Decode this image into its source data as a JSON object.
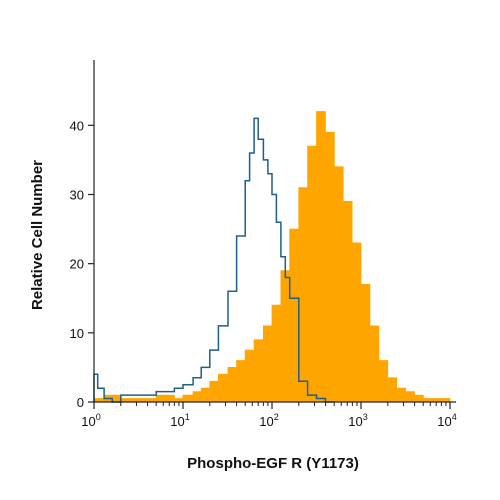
{
  "chart_data": {
    "type": "area",
    "xlabel": "Phospho-EGF R (Y1173)",
    "ylabel": "Relative Cell Number",
    "x_scale": "log",
    "xlim": [
      1,
      10000
    ],
    "ylim": [
      0,
      48
    ],
    "x_ticks": [
      {
        "base": "10",
        "exp": "0",
        "value": 1
      },
      {
        "base": "10",
        "exp": "1",
        "value": 10
      },
      {
        "base": "10",
        "exp": "2",
        "value": 100
      },
      {
        "base": "10",
        "exp": "3",
        "value": 1000
      },
      {
        "base": "10",
        "exp": "4",
        "value": 10000
      }
    ],
    "y_ticks": [
      "0",
      "10",
      "20",
      "30",
      "40"
    ],
    "grid": false,
    "series": [
      {
        "style": "filled",
        "color": "#FFA500",
        "x": [
          1,
          1.3,
          2,
          3,
          5,
          8,
          10,
          13,
          16,
          20,
          25,
          32,
          40,
          50,
          63,
          80,
          100,
          126,
          158,
          200,
          251,
          316,
          398,
          501,
          631,
          794,
          1000,
          1259,
          1585,
          1995,
          2512,
          3162,
          3981,
          5012,
          6310,
          7943,
          10000
        ],
        "y": [
          0.5,
          1,
          0.5,
          0.5,
          1,
          0.5,
          1,
          1.5,
          2,
          3,
          4,
          5,
          6,
          7.5,
          9,
          11,
          14,
          19,
          25,
          31,
          37,
          42,
          39,
          34,
          29,
          23,
          17,
          11,
          6,
          3.5,
          2,
          1.5,
          1,
          0.5,
          0.5,
          0.5,
          0.5
        ]
      },
      {
        "style": "outline",
        "color": "#1F5F8B",
        "x": [
          1,
          1.1,
          1.3,
          1.6,
          2,
          3,
          5,
          8,
          10,
          13,
          16,
          20,
          25,
          32,
          40,
          50,
          56,
          63,
          70,
          80,
          90,
          100,
          112,
          126,
          141,
          158,
          200,
          251,
          316,
          398,
          501
        ],
        "y": [
          4,
          2,
          0.5,
          0,
          1,
          1,
          1.5,
          2,
          2.5,
          3.5,
          5,
          7.5,
          11,
          16,
          24,
          32,
          36,
          41,
          38,
          35,
          33,
          30,
          26,
          21,
          18,
          15,
          3,
          1,
          0.5,
          0,
          0
        ]
      }
    ]
  }
}
